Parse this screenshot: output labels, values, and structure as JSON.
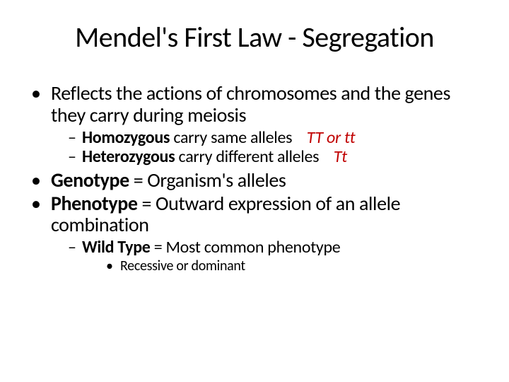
{
  "title": "Mendel's First Law - Segregation",
  "bullets": {
    "b1_text": "Reflects the actions of chromosomes and the genes they carry during meiosis",
    "b1a_bold": "Homozygous",
    "b1a_rest": " carry same alleles",
    "b1a_red": "TT or tt",
    "b1b_bold": "Heterozygous",
    "b1b_rest": " carry different alleles",
    "b1b_red": "Tt",
    "b2_bold": "Genotype",
    "b2_rest": " = Organism's alleles",
    "b3_bold": "Phenotype",
    "b3_rest": " = Outward expression of an allele combination",
    "b3a_bold": "Wild Type",
    "b3a_rest": " = Most common phenotype",
    "b3a1": "Recessive or dominant"
  },
  "colors": {
    "text": "#000000",
    "red": "#c00000",
    "background": "#ffffff"
  },
  "typography": {
    "title_size": 40,
    "level1_size": 28,
    "level2_size": 24,
    "level3_size": 20,
    "font_family": "Calibri"
  }
}
